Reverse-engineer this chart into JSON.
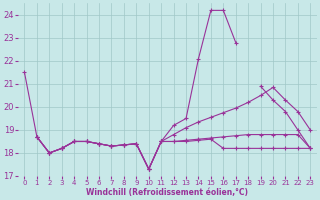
{
  "background_color": "#c8e8e8",
  "grid_color": "#a0c8c8",
  "line_color": "#993399",
  "xlabel": "Windchill (Refroidissement éolien,°C)",
  "xlim": [
    -0.5,
    23.5
  ],
  "ylim": [
    17,
    24.5
  ],
  "yticks": [
    17,
    18,
    19,
    20,
    21,
    22,
    23,
    24
  ],
  "xticks": [
    0,
    1,
    2,
    3,
    4,
    5,
    6,
    7,
    8,
    9,
    10,
    11,
    12,
    13,
    14,
    15,
    16,
    17,
    18,
    19,
    20,
    21,
    22,
    23
  ],
  "series": [
    {
      "x": [
        0,
        1,
        2,
        3,
        4,
        5,
        6,
        7,
        8,
        9,
        10,
        11,
        12,
        13,
        14,
        15,
        16,
        17,
        18,
        19,
        20,
        21,
        22,
        23
      ],
      "y": [
        21.5,
        18.7,
        18.0,
        18.2,
        18.5,
        18.5,
        18.4,
        18.3,
        18.35,
        18.4,
        17.3,
        18.5,
        19.2,
        19.5,
        22.1,
        24.2,
        24.2,
        22.8,
        null,
        20.9,
        20.3,
        19.8,
        19.0,
        18.2
      ]
    },
    {
      "x": [
        1,
        2,
        3,
        4,
        5,
        6,
        7,
        8,
        9,
        10,
        11,
        12,
        13,
        14,
        15,
        16,
        17,
        18,
        19,
        20,
        21,
        22,
        23
      ],
      "y": [
        18.7,
        18.0,
        18.2,
        18.5,
        18.5,
        18.4,
        18.3,
        18.35,
        18.4,
        17.3,
        18.5,
        18.5,
        18.5,
        18.55,
        18.6,
        18.2,
        18.2,
        18.2,
        18.2,
        18.2,
        18.2,
        18.2,
        18.2
      ]
    },
    {
      "x": [
        1,
        2,
        3,
        4,
        5,
        6,
        7,
        8,
        9,
        10,
        11,
        12,
        13,
        14,
        15,
        16,
        17,
        18,
        19,
        20,
        21,
        22,
        23
      ],
      "y": [
        18.7,
        18.0,
        18.2,
        18.5,
        18.5,
        18.4,
        18.3,
        18.35,
        18.4,
        17.3,
        18.5,
        18.8,
        19.1,
        19.35,
        19.55,
        19.75,
        19.95,
        20.2,
        20.5,
        20.85,
        20.3,
        19.8,
        19.0
      ]
    },
    {
      "x": [
        1,
        2,
        3,
        4,
        5,
        6,
        7,
        8,
        9,
        10,
        11,
        12,
        13,
        14,
        15,
        16,
        17,
        18,
        19,
        20,
        21,
        22,
        23
      ],
      "y": [
        18.7,
        18.0,
        18.2,
        18.5,
        18.5,
        18.4,
        18.3,
        18.35,
        18.4,
        17.3,
        18.5,
        18.5,
        18.55,
        18.6,
        18.65,
        18.7,
        18.75,
        18.8,
        18.8,
        18.8,
        18.8,
        18.8,
        18.2
      ]
    }
  ]
}
